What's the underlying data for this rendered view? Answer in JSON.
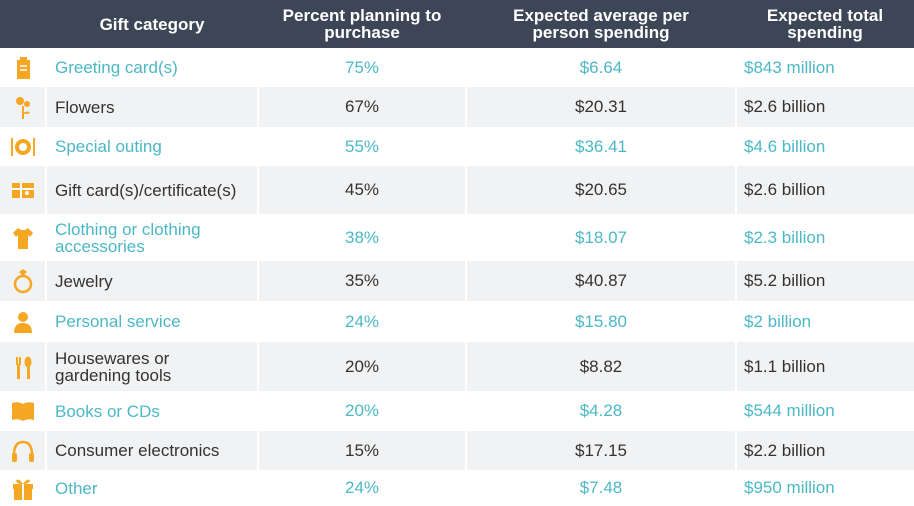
{
  "chart_data": {
    "type": "table",
    "columns": [
      "Gift category",
      "Percent planning to purchase",
      "Expected average per person spending",
      "Expected total spending"
    ],
    "rows": [
      {
        "icon": "greeting-card-icon",
        "category": "Greeting card(s)",
        "percent": "75%",
        "avg": "$6.64",
        "total": "$843 million"
      },
      {
        "icon": "flowers-icon",
        "category": "Flowers",
        "percent": "67%",
        "avg": "$20.31",
        "total": "$2.6 billion"
      },
      {
        "icon": "plate-cutlery-icon",
        "category": "Special outing",
        "percent": "55%",
        "avg": "$36.41",
        "total": "$4.6 billion"
      },
      {
        "icon": "gift-card-icon",
        "category": "Gift card(s)/certificate(s)",
        "percent": "45%",
        "avg": "$20.65",
        "total": "$2.6 billion"
      },
      {
        "icon": "shirt-icon",
        "category": "Clothing or clothing accessories",
        "percent": "38%",
        "avg": "$18.07",
        "total": "$2.3 billion"
      },
      {
        "icon": "ring-icon",
        "category": "Jewelry",
        "percent": "35%",
        "avg": "$40.87",
        "total": "$5.2 billion"
      },
      {
        "icon": "person-icon",
        "category": "Personal service",
        "percent": "24%",
        "avg": "$15.80",
        "total": "$2 billion"
      },
      {
        "icon": "garden-tools-icon",
        "category": "Housewares or gardening tools",
        "percent": "20%",
        "avg": "$8.82",
        "total": "$1.1 billion"
      },
      {
        "icon": "book-icon",
        "category": "Books or CDs",
        "percent": "20%",
        "avg": "$4.28",
        "total": "$544 million"
      },
      {
        "icon": "headphones-icon",
        "category": "Consumer electronics",
        "percent": "15%",
        "avg": "$17.15",
        "total": "$2.2 billion"
      },
      {
        "icon": "gift-box-icon",
        "category": "Other",
        "percent": "24%",
        "avg": "$7.48",
        "total": "$950 million"
      }
    ]
  },
  "colors": {
    "header_bg": "#3c4656",
    "accent_text": "#4cb8c6",
    "icon": "#f5a623",
    "row_alt": "#f1f2f3"
  }
}
